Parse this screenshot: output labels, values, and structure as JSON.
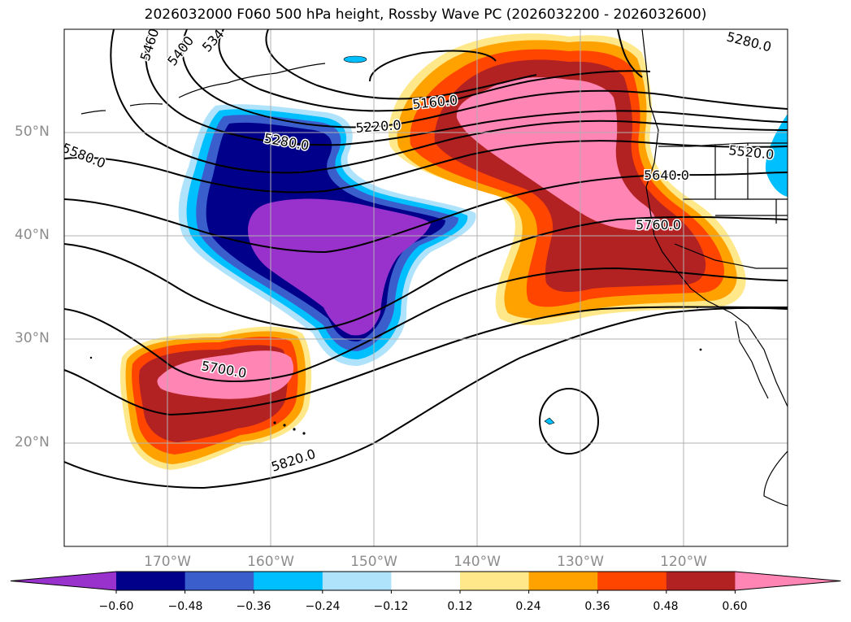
{
  "title": "2026032000 F060 500 hPa height, Rossby Wave PC (2026032200 - 2026032600)",
  "lat_labels": [
    {
      "text": "50°N",
      "lat": 50
    },
    {
      "text": "40°N",
      "lat": 40
    },
    {
      "text": "30°N",
      "lat": 30
    },
    {
      "text": "20°N",
      "lat": 20
    }
  ],
  "lon_labels": [
    {
      "text": "170°W",
      "lon": -170
    },
    {
      "text": "160°W",
      "lon": -160
    },
    {
      "text": "150°W",
      "lon": -150
    },
    {
      "text": "140°W",
      "lon": -140
    },
    {
      "text": "130°W",
      "lon": -130
    },
    {
      "text": "120°W",
      "lon": -120
    }
  ],
  "contour_labels": [
    "5460",
    "5400",
    "534",
    "5280.0",
    "5160.0",
    "5220.0",
    "5280.0",
    "5580.0",
    "5520.0",
    "5640.0",
    "5760.0",
    "5700.0",
    "5820.0"
  ],
  "colorbar": {
    "ticks": [
      "−0.60",
      "−0.48",
      "−0.36",
      "−0.24",
      "−0.12",
      "0.12",
      "0.24",
      "0.36",
      "0.48",
      "0.60"
    ],
    "colors": [
      "#9932cc",
      "#00008b",
      "#3a5fcd",
      "#00bfff",
      "#afe2fb",
      "#ffffff",
      "#ffe88a",
      "#ffa200",
      "#ff4500",
      "#b22222",
      "#ff85b4"
    ]
  }
}
